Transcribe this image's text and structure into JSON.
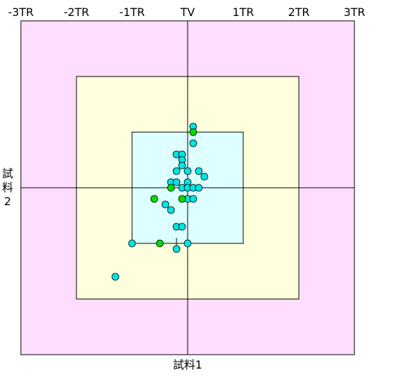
{
  "chart_data": {
    "type": "scatter",
    "xlabel": "試料1",
    "ylabel_chars": [
      "試",
      "料",
      "2"
    ],
    "x_tick_labels": [
      "-3TR",
      "-2TR",
      "-1TR",
      "TV",
      "1TR",
      "2TR",
      "3TR"
    ],
    "xlim": [
      -3,
      3
    ],
    "ylim": [
      -3,
      3
    ],
    "zones": [
      {
        "half_width": 3,
        "color": "#ffddff"
      },
      {
        "half_width": 2,
        "color": "#ffffdd"
      },
      {
        "half_width": 1,
        "color": "#ddffff"
      }
    ],
    "grid": false,
    "connector_lines": [
      {
        "x1": -1.0,
        "y1": -1.0,
        "x2": 0.0,
        "y2": -1.0
      },
      {
        "x1": -0.2,
        "y1": -1.1,
        "x2": -0.2,
        "y2": -0.9
      }
    ],
    "series": [
      {
        "color": "#00e5e5",
        "points": [
          {
            "x": 0.1,
            "y": 1.1
          },
          {
            "x": 0.1,
            "y": 0.8
          },
          {
            "x": -0.2,
            "y": 0.6
          },
          {
            "x": -0.1,
            "y": 0.6
          },
          {
            "x": -0.1,
            "y": 0.5
          },
          {
            "x": -0.1,
            "y": 0.4
          },
          {
            "x": -0.2,
            "y": 0.3
          },
          {
            "x": 0.0,
            "y": 0.3
          },
          {
            "x": 0.2,
            "y": 0.3
          },
          {
            "x": 0.3,
            "y": 0.2
          },
          {
            "x": -0.3,
            "y": 0.1
          },
          {
            "x": -0.2,
            "y": 0.1
          },
          {
            "x": 0.0,
            "y": 0.1
          },
          {
            "x": -0.1,
            "y": 0.0
          },
          {
            "x": 0.0,
            "y": 0.0
          },
          {
            "x": 0.1,
            "y": 0.0
          },
          {
            "x": 0.2,
            "y": 0.0
          },
          {
            "x": 0.0,
            "y": -0.2
          },
          {
            "x": 0.1,
            "y": -0.2
          },
          {
            "x": -0.4,
            "y": -0.3
          },
          {
            "x": -0.3,
            "y": -0.4
          },
          {
            "x": -0.2,
            "y": -0.7
          },
          {
            "x": -0.1,
            "y": -0.7
          },
          {
            "x": -1.0,
            "y": -1.0
          },
          {
            "x": 0.0,
            "y": -1.0
          },
          {
            "x": -0.2,
            "y": -1.1
          },
          {
            "x": -1.3,
            "y": -1.6
          }
        ]
      },
      {
        "color": "#00dd00",
        "points": [
          {
            "x": 0.1,
            "y": 1.0
          },
          {
            "x": -0.3,
            "y": 0.0
          },
          {
            "x": -0.6,
            "y": -0.2
          },
          {
            "x": -0.1,
            "y": -0.2
          },
          {
            "x": -0.5,
            "y": -1.0
          }
        ]
      }
    ]
  }
}
